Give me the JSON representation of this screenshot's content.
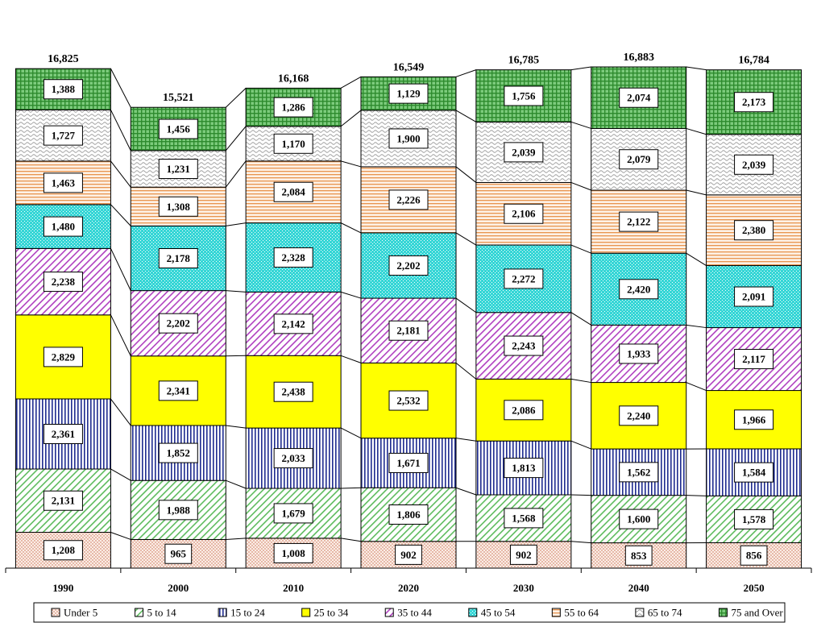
{
  "chart_data": {
    "type": "bar",
    "stacked": true,
    "title": "",
    "xlabel": "",
    "ylabel": "",
    "categories": [
      "1990",
      "2000",
      "2010",
      "2020",
      "2030",
      "2040",
      "2050"
    ],
    "totals": [
      16825,
      15521,
      16168,
      16549,
      16785,
      16883,
      16784
    ],
    "total_labels": [
      "16,825",
      "15,521",
      "16,168",
      "16,549",
      "16,785",
      "16,883",
      "16,784"
    ],
    "series": [
      {
        "name": "Under 5",
        "color": "#F4C9B8",
        "pattern": "dots",
        "values": [
          1208,
          965,
          1008,
          902,
          902,
          853,
          856
        ],
        "labels": [
          "1,208",
          "965",
          "1,008",
          "902",
          "902",
          "853",
          "856"
        ]
      },
      {
        "name": "5 to 14",
        "color": "#5DBB5D",
        "pattern": "diag",
        "values": [
          2131,
          1988,
          1679,
          1806,
          1568,
          1600,
          1578
        ],
        "labels": [
          "2,131",
          "1,988",
          "1,679",
          "1,806",
          "1,568",
          "1,600",
          "1,578"
        ]
      },
      {
        "name": "15 to 24",
        "color": "#1F2C8F",
        "pattern": "vert",
        "values": [
          2361,
          1852,
          2033,
          1671,
          1813,
          1562,
          1584
        ],
        "labels": [
          "2,361",
          "1,852",
          "2,033",
          "1,671",
          "1,813",
          "1,562",
          "1,584"
        ]
      },
      {
        "name": "25 to 34",
        "color": "#FFFF00",
        "pattern": "solid",
        "values": [
          2829,
          2341,
          2438,
          2532,
          2086,
          2240,
          1966
        ],
        "labels": [
          "2,829",
          "2,341",
          "2,438",
          "2,532",
          "2,086",
          "2,240",
          "1,966"
        ]
      },
      {
        "name": "35 to 44",
        "color": "#B040C0",
        "pattern": "diag",
        "values": [
          2238,
          2202,
          2142,
          2181,
          2243,
          1933,
          2117
        ],
        "labels": [
          "2,238",
          "2,202",
          "2,142",
          "2,181",
          "2,243",
          "1,933",
          "2,117"
        ]
      },
      {
        "name": "45 to 54",
        "color": "#35D6D6",
        "pattern": "checker",
        "values": [
          1480,
          2178,
          2328,
          2202,
          2272,
          2420,
          2091
        ],
        "labels": [
          "1,480",
          "2,178",
          "2,328",
          "2,202",
          "2,272",
          "2,420",
          "2,091"
        ]
      },
      {
        "name": "55 to 64",
        "color": "#E8944E",
        "pattern": "horiz",
        "values": [
          1463,
          1308,
          2084,
          2226,
          2106,
          2122,
          2380
        ],
        "labels": [
          "1,463",
          "1,308",
          "2,084",
          "2,226",
          "2,106",
          "2,122",
          "2,380"
        ]
      },
      {
        "name": "65 to 74",
        "color": "#9A9A9A",
        "pattern": "wave",
        "values": [
          1727,
          1231,
          1170,
          1900,
          2039,
          2079,
          2039
        ],
        "labels": [
          "1,727",
          "1,231",
          "1,170",
          "1,900",
          "2,039",
          "2,079",
          "2,039"
        ]
      },
      {
        "name": "75 and Over",
        "color": "#2E8B2E",
        "pattern": "grid",
        "values": [
          1388,
          1456,
          1286,
          1129,
          1756,
          2074,
          2173
        ],
        "labels": [
          "1,388",
          "1,456",
          "1,286",
          "1,129",
          "1,756",
          "2,074",
          "2,173"
        ]
      }
    ],
    "ylim": [
      0,
      18000
    ],
    "grid": false,
    "legend_position": "bottom"
  }
}
